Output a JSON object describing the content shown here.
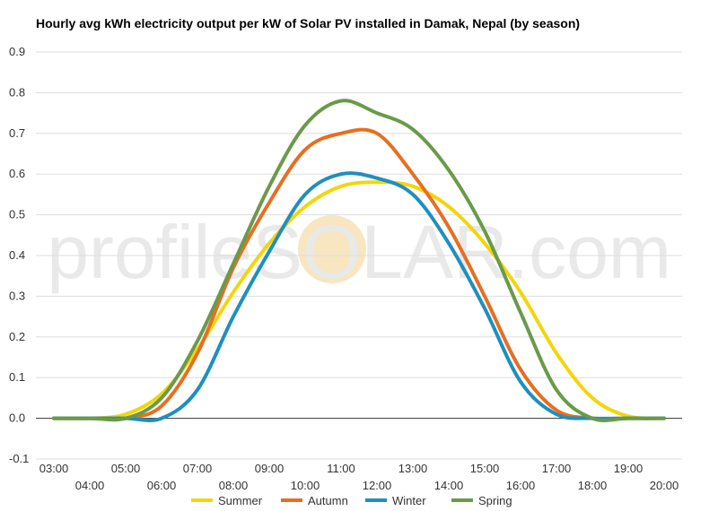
{
  "chart_data": {
    "type": "line",
    "title": "Hourly avg kWh electricity output per kW of Solar PV installed in Damak, Nepal (by season)",
    "xlabel": "",
    "ylabel": "",
    "ylim": [
      -0.1,
      0.9
    ],
    "yticks": [
      "-0.1",
      "0.0",
      "0.1",
      "0.2",
      "0.3",
      "0.4",
      "0.5",
      "0.6",
      "0.7",
      "0.8",
      "0.9"
    ],
    "x": [
      "03:00",
      "04:00",
      "05:00",
      "06:00",
      "07:00",
      "08:00",
      "09:00",
      "10:00",
      "11:00",
      "12:00",
      "13:00",
      "14:00",
      "15:00",
      "16:00",
      "17:00",
      "18:00",
      "19:00",
      "20:00"
    ],
    "grid": true,
    "legend": "bottom",
    "series": [
      {
        "name": "Summer",
        "color": "#f2d60c",
        "values": [
          0.0,
          0.0,
          0.01,
          0.06,
          0.17,
          0.31,
          0.43,
          0.52,
          0.57,
          0.58,
          0.57,
          0.52,
          0.43,
          0.31,
          0.16,
          0.05,
          0.005,
          0.0
        ]
      },
      {
        "name": "Autumn",
        "color": "#e66f22",
        "values": [
          0.0,
          0.0,
          0.0,
          0.03,
          0.16,
          0.37,
          0.53,
          0.66,
          0.7,
          0.7,
          0.6,
          0.47,
          0.3,
          0.12,
          0.02,
          0.0,
          0.0,
          0.0
        ]
      },
      {
        "name": "Winter",
        "color": "#1f8fbf",
        "values": [
          0.0,
          0.0,
          0.0,
          0.0,
          0.07,
          0.25,
          0.41,
          0.55,
          0.6,
          0.59,
          0.55,
          0.43,
          0.27,
          0.09,
          0.01,
          0.0,
          0.0,
          0.0
        ]
      },
      {
        "name": "Spring",
        "color": "#6a9a4a",
        "values": [
          0.0,
          0.0,
          0.0,
          0.05,
          0.19,
          0.38,
          0.57,
          0.72,
          0.78,
          0.75,
          0.71,
          0.61,
          0.46,
          0.26,
          0.07,
          0.0,
          0.0,
          0.0
        ]
      }
    ]
  },
  "watermark": {
    "text": "profileSOLAR.com"
  }
}
